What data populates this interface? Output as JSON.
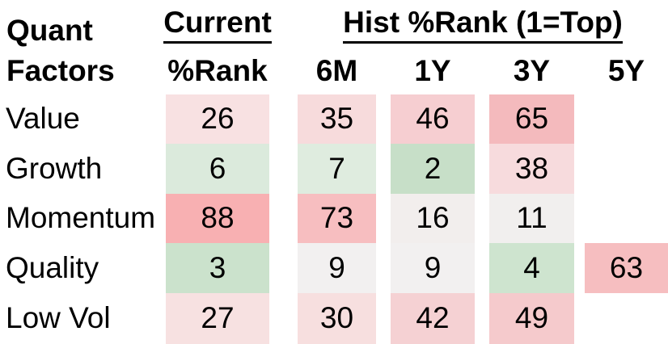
{
  "header": {
    "row_header_line1": "Quant",
    "row_header_line2": "Factors",
    "current_group": "Current",
    "current_sub": "%Rank",
    "hist_group": "Hist %Rank (1=Top)",
    "periods": [
      "6M",
      "1Y",
      "3Y",
      "5Y"
    ]
  },
  "rows": [
    {
      "label": "Value",
      "cells": [
        {
          "value": "26",
          "bg": "#f8e1e2"
        },
        {
          "value": "35",
          "bg": "#f7dbdc"
        },
        {
          "value": "46",
          "bg": "#f6ced1"
        },
        {
          "value": "65",
          "bg": "#f4babd"
        },
        {
          "value": "",
          "bg": ""
        }
      ]
    },
    {
      "label": "Growth",
      "cells": [
        {
          "value": "6",
          "bg": "#dbeadc"
        },
        {
          "value": "7",
          "bg": "#dfecdf"
        },
        {
          "value": "2",
          "bg": "#c7dfc8"
        },
        {
          "value": "38",
          "bg": "#f7dbdd"
        },
        {
          "value": "",
          "bg": ""
        }
      ]
    },
    {
      "label": "Momentum",
      "cells": [
        {
          "value": "88",
          "bg": "#f8b0b2"
        },
        {
          "value": "73",
          "bg": "#f7bec0"
        },
        {
          "value": "16",
          "bg": "#f2eeed"
        },
        {
          "value": "11",
          "bg": "#f1efee"
        },
        {
          "value": "",
          "bg": ""
        }
      ]
    },
    {
      "label": "Quality",
      "cells": [
        {
          "value": "3",
          "bg": "#cbe2cc"
        },
        {
          "value": "9",
          "bg": "#f2f0f0"
        },
        {
          "value": "9",
          "bg": "#f2f0f0"
        },
        {
          "value": "4",
          "bg": "#cee4cf"
        },
        {
          "value": "63",
          "bg": "#f6bec0"
        }
      ]
    },
    {
      "label": "Low Vol",
      "cells": [
        {
          "value": "27",
          "bg": "#f7e1e1"
        },
        {
          "value": "30",
          "bg": "#f7dfdf"
        },
        {
          "value": "42",
          "bg": "#f5d1d3"
        },
        {
          "value": "49",
          "bg": "#f5cacc"
        },
        {
          "value": "",
          "bg": ""
        }
      ]
    }
  ],
  "chart_data": {
    "type": "heatmap",
    "title": "Quant Factors %Rank",
    "row_label_header": "Quant Factors",
    "column_groups": [
      {
        "label": "Current",
        "columns": [
          "%Rank"
        ]
      },
      {
        "label": "Hist %Rank (1=Top)",
        "columns": [
          "6M",
          "1Y",
          "3Y",
          "5Y"
        ]
      }
    ],
    "columns": [
      "%Rank",
      "6M",
      "1Y",
      "3Y",
      "5Y"
    ],
    "rows": [
      "Value",
      "Growth",
      "Momentum",
      "Quality",
      "Low Vol"
    ],
    "values": [
      [
        26,
        35,
        46,
        65,
        null
      ],
      [
        6,
        7,
        2,
        38,
        null
      ],
      [
        88,
        73,
        16,
        11,
        null
      ],
      [
        3,
        9,
        9,
        4,
        63
      ],
      [
        27,
        30,
        42,
        49,
        null
      ]
    ],
    "scale_note": "1=Top",
    "color_scale": {
      "low_value_color": "#c7dfc8",
      "mid_value_color": "#f1efee",
      "high_value_color": "#f8b0b2"
    },
    "legend_position": "none",
    "grid": false
  }
}
